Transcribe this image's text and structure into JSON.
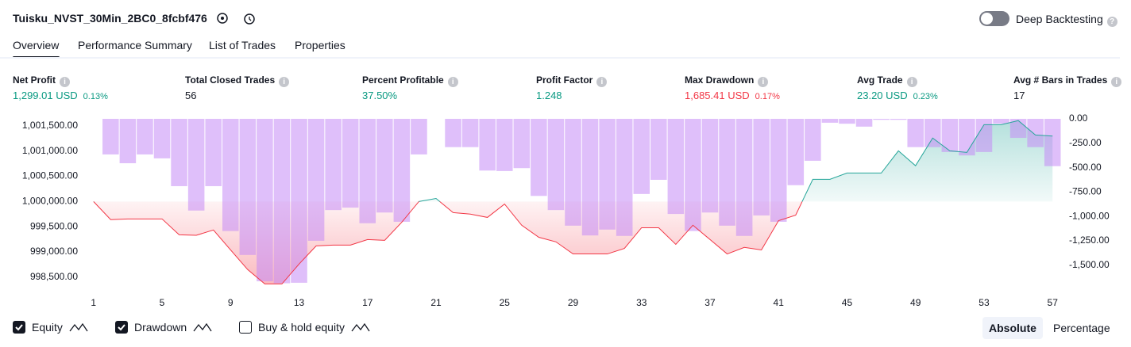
{
  "header": {
    "title": "Tuisku_NVST_30Min_2BC0_8fcbf476",
    "toggle_label": "Deep Backtesting"
  },
  "tabs": [
    "Overview",
    "Performance Summary",
    "List of Trades",
    "Properties"
  ],
  "active_tab": 0,
  "metrics": [
    {
      "label": "Net Profit",
      "value": "1,299.01 USD",
      "pct": "0.13%",
      "color": "#089981"
    },
    {
      "label": "Total Closed Trades",
      "value": "56",
      "color": "#131722"
    },
    {
      "label": "Percent Profitable",
      "value": "37.50%",
      "color": "#089981"
    },
    {
      "label": "Profit Factor",
      "value": "1.248",
      "color": "#089981"
    },
    {
      "label": "Max Drawdown",
      "value": "1,685.41 USD",
      "pct": "0.17%",
      "color": "#f23645"
    },
    {
      "label": "Avg Trade",
      "value": "23.20 USD",
      "pct": "0.23%",
      "color": "#089981"
    },
    {
      "label": "Avg # Bars in Trades",
      "value": "17",
      "color": "#131722"
    }
  ],
  "chart_data": {
    "type": "equity",
    "x": [
      1,
      2,
      3,
      4,
      5,
      6,
      7,
      8,
      9,
      10,
      11,
      12,
      13,
      14,
      15,
      16,
      17,
      18,
      19,
      20,
      21,
      22,
      23,
      24,
      25,
      26,
      27,
      28,
      29,
      30,
      31,
      32,
      33,
      34,
      35,
      36,
      37,
      38,
      39,
      40,
      41,
      42,
      43,
      44,
      45,
      46,
      47,
      48,
      49,
      50,
      51,
      52,
      53,
      54,
      55,
      56,
      57
    ],
    "xlim": [
      0.5,
      57.5
    ],
    "xticks": [
      1,
      5,
      9,
      13,
      17,
      21,
      25,
      29,
      33,
      37,
      41,
      45,
      49,
      53,
      57
    ],
    "ylim": [
      998340,
      1001640
    ],
    "yticks": [
      {
        "value": 998500,
        "label": "998,500.00"
      },
      {
        "value": 999000,
        "label": "999,000.00"
      },
      {
        "value": 999500,
        "label": "999,500.00"
      },
      {
        "value": 1000000,
        "label": "1,000,000.00"
      },
      {
        "value": 1000500,
        "label": "1,000,500.00"
      },
      {
        "value": 1001000,
        "label": "1,001,000.00"
      },
      {
        "value": 1001500,
        "label": "1,001,500.00"
      }
    ],
    "y2lim": [
      -1705,
      0
    ],
    "y2ticks": [
      {
        "value": 0,
        "label": "0.00"
      },
      {
        "value": -250,
        "label": "-250.00"
      },
      {
        "value": -500,
        "label": "-500.00"
      },
      {
        "value": -750,
        "label": "-750.00"
      },
      {
        "value": -1000,
        "label": "-1,000.00"
      },
      {
        "value": -1250,
        "label": "-1,250.00"
      },
      {
        "value": -1500,
        "label": "-1,500.00"
      }
    ],
    "baseline": 1000000,
    "series": [
      {
        "name": "Equity",
        "kind": "area",
        "color_up": "#26a69a",
        "color_down": "#f23645",
        "values": [
          1000000,
          999640,
          999655,
          999655,
          999655,
          999340,
          999330,
          999435,
          999040,
          998650,
          998365,
          998365,
          998760,
          999120,
          999135,
          999135,
          999245,
          999230,
          999590,
          1000000,
          1000060,
          999780,
          999750,
          999685,
          999950,
          999530,
          999290,
          999200,
          998960,
          998960,
          998960,
          999070,
          999480,
          999480,
          999150,
          999530,
          999245,
          998960,
          999090,
          999040,
          999620,
          999730,
          1000440,
          1000440,
          1000565,
          1000565,
          1000565,
          1001005,
          1000710,
          1001260,
          1001005,
          1000975,
          1001525,
          1001525,
          1001605,
          1001320,
          1001299
        ]
      },
      {
        "name": "Drawdown",
        "kind": "bar",
        "axis": "y2",
        "color": "#c58af5",
        "values": [
          null,
          -365,
          -455,
          -365,
          -405,
          -690,
          -940,
          -690,
          -1150,
          -1395,
          -1665,
          -1685,
          -1680,
          -1250,
          -935,
          -910,
          -1070,
          -960,
          -1055,
          -365,
          0,
          -290,
          -290,
          -530,
          -535,
          -505,
          -790,
          -935,
          -1095,
          -1195,
          -1135,
          -1200,
          -770,
          -625,
          -975,
          -1150,
          -960,
          -1095,
          -1200,
          -990,
          -1055,
          -680,
          -430,
          -40,
          -50,
          -80,
          -10,
          -10,
          -290,
          -290,
          -340,
          -375,
          -340,
          -50,
          -195,
          -290,
          -485
        ]
      }
    ]
  },
  "extra_legend": "Buy & hold equity",
  "scale_options": [
    "Absolute",
    "Percentage"
  ],
  "active_scale": 0
}
